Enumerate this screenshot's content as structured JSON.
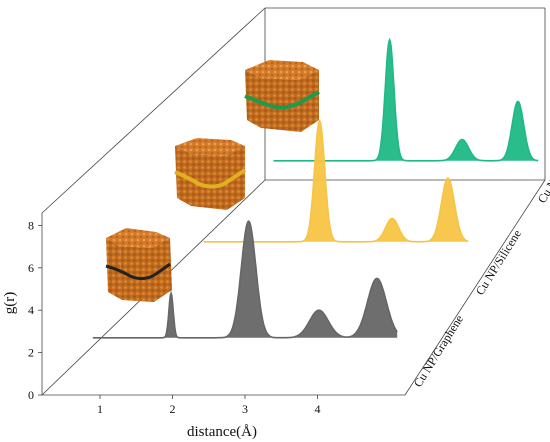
{
  "chart_data": {
    "type": "area",
    "ylabel": "g(r)",
    "xlabel": "distance(Å)",
    "x_ticks": [
      "1",
      "2",
      "3",
      "4"
    ],
    "y_ticks": [
      "0",
      "2",
      "4",
      "6",
      "8"
    ],
    "xlim": [
      0.2,
      5.1
    ],
    "ylim": [
      0,
      8.8
    ],
    "baseline": 2.7,
    "series": [
      {
        "name": "Cu NP/Graphene",
        "color": "#666666",
        "peaks": [
          {
            "x": 1.98,
            "height": 2.1,
            "width": 0.03
          },
          {
            "x": 3.05,
            "height": 5.5,
            "width": 0.1
          },
          {
            "x": 4.02,
            "height": 1.3,
            "width": 0.13
          },
          {
            "x": 4.82,
            "height": 2.8,
            "width": 0.13
          }
        ]
      },
      {
        "name": "Cu NP/Silicene",
        "color": "#f7c444",
        "peaks": [
          {
            "x": 3.05,
            "height": 5.7,
            "width": 0.07
          },
          {
            "x": 4.05,
            "height": 1.1,
            "width": 0.09
          },
          {
            "x": 4.82,
            "height": 3.0,
            "width": 0.09
          }
        ]
      },
      {
        "name": "Cu NP/Germanene",
        "color": "#1fb985",
        "peaks": [
          {
            "x": 3.05,
            "height": 5.7,
            "width": 0.06
          },
          {
            "x": 4.05,
            "height": 1.0,
            "width": 0.09
          },
          {
            "x": 4.82,
            "height": 2.8,
            "width": 0.08
          }
        ]
      }
    ],
    "grid": false,
    "legend": "none"
  },
  "insets": [
    {
      "name": "graphene-nanoparticle-image",
      "layer_color": "#222222"
    },
    {
      "name": "silicene-nanoparticle-image",
      "layer_color": "#e0b020"
    },
    {
      "name": "germanene-nanoparticle-image",
      "layer_color": "#1e9a4a"
    }
  ]
}
